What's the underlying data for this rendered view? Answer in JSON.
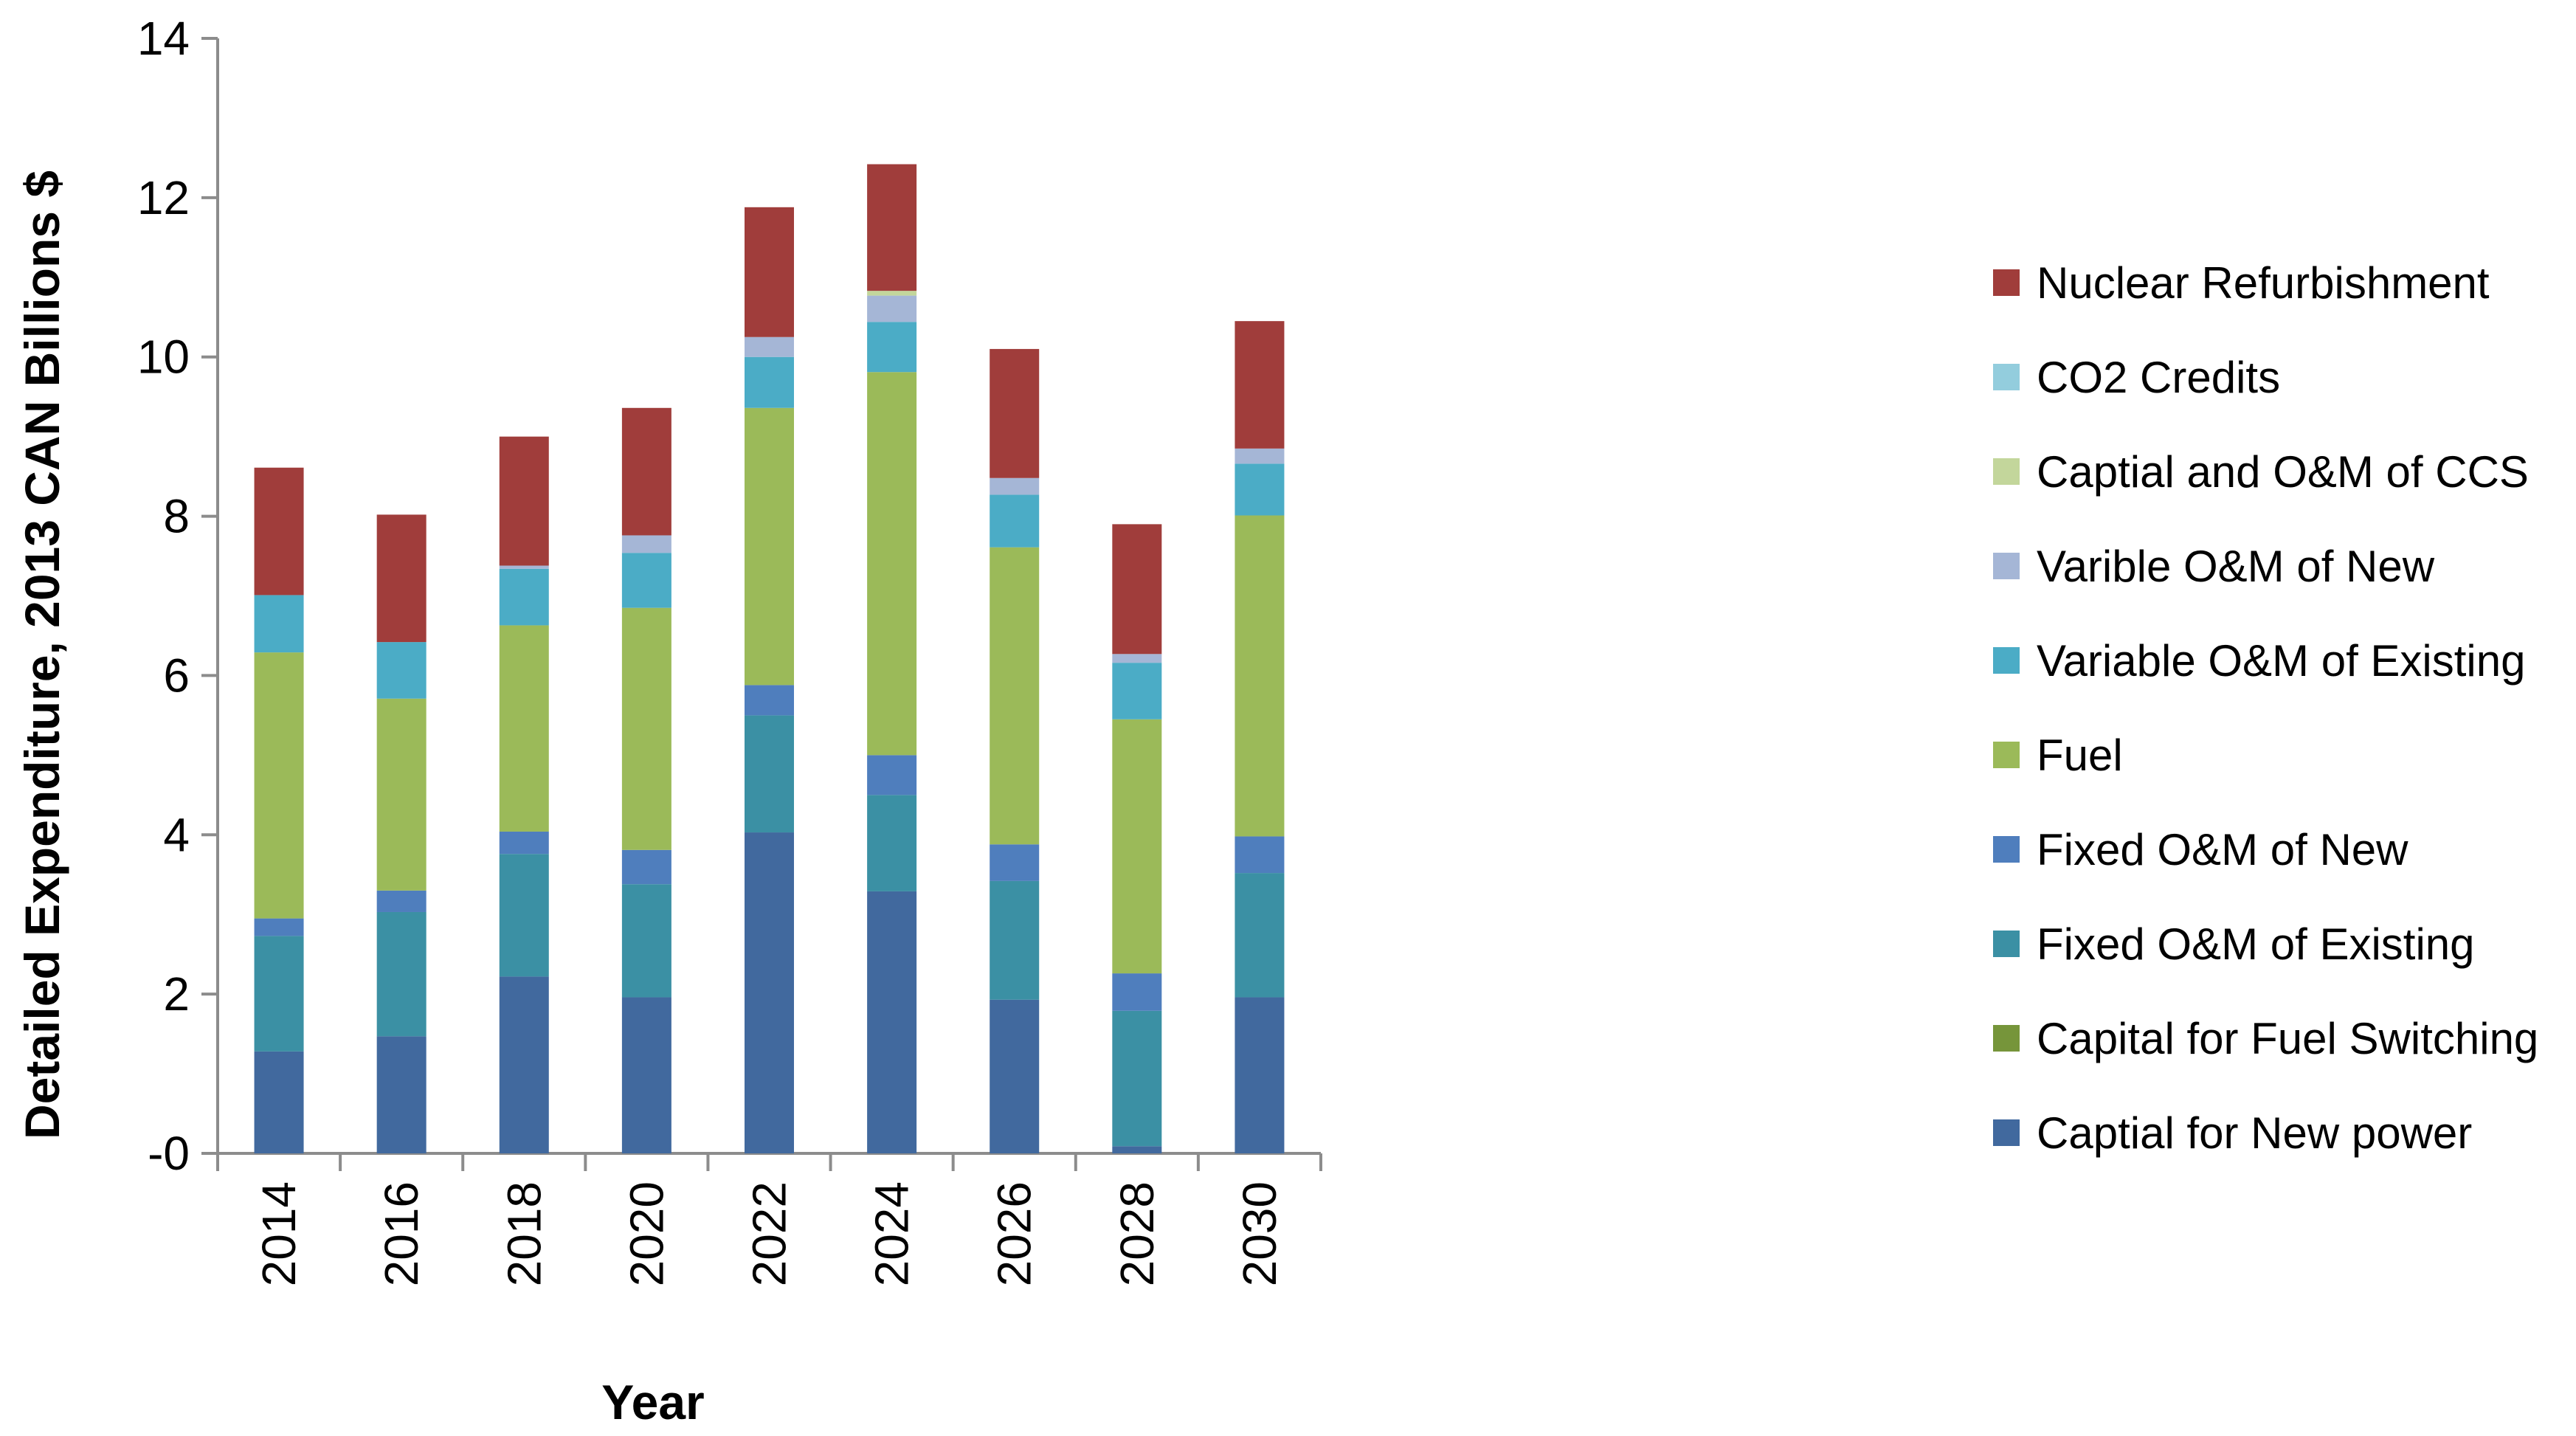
{
  "chart_data": {
    "type": "bar",
    "stacked": true,
    "title": "",
    "xlabel": "Year",
    "ylabel": "Detailed Expenditure, 2013 CAN Billions $",
    "ylim": [
      0,
      14
    ],
    "yticks": [
      0,
      2,
      4,
      6,
      8,
      10,
      12,
      14
    ],
    "ytick_labels": [
      "-0",
      "2",
      "4",
      "6",
      "8",
      "10",
      "12",
      "14"
    ],
    "legend_position": "right",
    "categories": [
      "2014",
      "2016",
      "2018",
      "2020",
      "2022",
      "2024",
      "2026",
      "2028",
      "2030"
    ],
    "series": [
      {
        "name": "Captial for New power",
        "color": "#41699E",
        "values": [
          1.28,
          1.47,
          2.22,
          1.96,
          4.03,
          3.29,
          1.93,
          0.09,
          1.96
        ]
      },
      {
        "name": "Capital for Fuel Switching",
        "color": "#76953A",
        "values": [
          0,
          0,
          0,
          0,
          0,
          0,
          0,
          0,
          0
        ]
      },
      {
        "name": "Fixed O&M of Existing",
        "color": "#3B90A4",
        "values": [
          1.45,
          1.56,
          1.54,
          1.42,
          1.47,
          1.21,
          1.49,
          1.7,
          1.56
        ]
      },
      {
        "name": "Fixed O&M of New",
        "color": "#4F7EBD",
        "values": [
          0.22,
          0.27,
          0.28,
          0.43,
          0.38,
          0.5,
          0.46,
          0.47,
          0.46
        ]
      },
      {
        "name": "Fuel",
        "color": "#9BBA59",
        "values": [
          3.34,
          2.41,
          2.59,
          3.04,
          3.48,
          4.81,
          3.73,
          3.19,
          4.03
        ]
      },
      {
        "name": "Variable O&M of Existing",
        "color": "#4BACC6",
        "values": [
          0.72,
          0.71,
          0.71,
          0.69,
          0.64,
          0.63,
          0.66,
          0.71,
          0.65
        ]
      },
      {
        "name": "Varible O&M of New",
        "color": "#A5B6D6",
        "values": [
          0,
          0,
          0.04,
          0.22,
          0.25,
          0.33,
          0.21,
          0.11,
          0.19
        ]
      },
      {
        "name": "Captial and O&M of CCS",
        "color": "#C3D69B",
        "values": [
          0,
          0,
          0,
          0,
          0,
          0.06,
          0,
          0,
          0
        ]
      },
      {
        "name": "CO2 Credits",
        "color": "#93CDDD",
        "values": [
          0,
          0,
          0,
          0,
          0,
          0,
          0,
          0,
          0
        ]
      },
      {
        "name": "Nuclear Refurbishment",
        "color": "#A03D3B",
        "values": [
          1.6,
          1.6,
          1.62,
          1.6,
          1.63,
          1.59,
          1.62,
          1.63,
          1.6
        ]
      }
    ]
  }
}
